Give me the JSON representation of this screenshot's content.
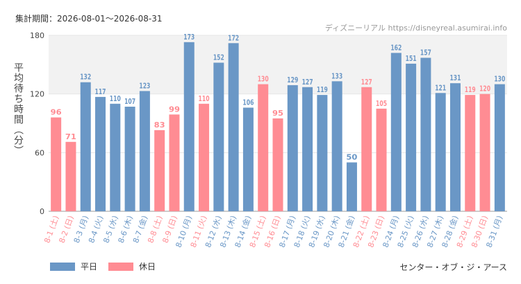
{
  "header": {
    "period": "集計期間：2026-08-01～2026-08-31",
    "source": "ディズニーリアル https://disneyreal.asumirai.info"
  },
  "legend": {
    "weekday": "平日",
    "holiday": "休日"
  },
  "footer": {
    "venue": "センター・オブ・ジ・アース"
  },
  "colors": {
    "weekday": "#6a97c6",
    "holiday": "#ff8c93",
    "grid": "#e6e6e6",
    "band": "#f2f2f2"
  },
  "chart_data": {
    "type": "bar",
    "ylabel": "平均待ち時間（分）",
    "ylim": [
      0,
      180
    ],
    "yticks": [
      0,
      60,
      120,
      180
    ],
    "categories": [
      "8-1 (土)",
      "8-2 (日)",
      "8-3 (月)",
      "8-4 (火)",
      "8-5 (水)",
      "8-6 (木)",
      "8-7 (金)",
      "8-8 (土)",
      "8-9 (日)",
      "8-10 (月)",
      "8-11 (火)",
      "8-12 (水)",
      "8-13 (木)",
      "8-14 (金)",
      "8-15 (土)",
      "8-16 (日)",
      "8-17 (月)",
      "8-18 (火)",
      "8-19 (水)",
      "8-20 (木)",
      "8-21 (金)",
      "8-22 (土)",
      "8-23 (日)",
      "8-24 (月)",
      "8-25 (火)",
      "8-26 (水)",
      "8-27 (木)",
      "8-28 (金)",
      "8-29 (土)",
      "8-30 (日)",
      "8-31 (月)"
    ],
    "values": [
      96,
      71,
      132,
      117,
      110,
      107,
      123,
      83,
      99,
      173,
      110,
      152,
      172,
      106,
      130,
      95,
      129,
      127,
      119,
      133,
      50,
      127,
      105,
      162,
      151,
      157,
      121,
      131,
      119,
      120,
      130
    ],
    "day_type": [
      "holiday",
      "holiday",
      "weekday",
      "weekday",
      "weekday",
      "weekday",
      "weekday",
      "holiday",
      "holiday",
      "weekday",
      "holiday",
      "weekday",
      "weekday",
      "weekday",
      "holiday",
      "holiday",
      "weekday",
      "weekday",
      "weekday",
      "weekday",
      "weekday",
      "holiday",
      "holiday",
      "weekday",
      "weekday",
      "weekday",
      "weekday",
      "weekday",
      "holiday",
      "holiday",
      "weekday"
    ]
  }
}
